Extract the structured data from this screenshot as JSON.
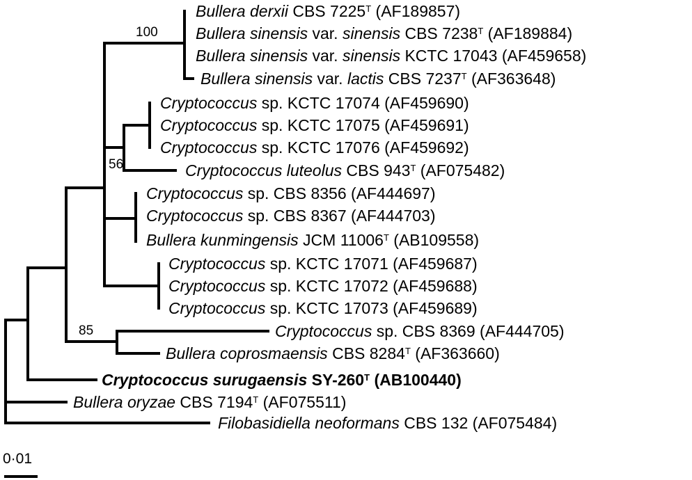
{
  "taxa": [
    {
      "id": "t1",
      "genus": "Bullera",
      "epithet": "derxii",
      "rest": " CBS 7225",
      "type_strain": true,
      "accession": " (AF189857)"
    },
    {
      "id": "t2",
      "genus": "Bullera",
      "epithet": "sinensis",
      "var": "sinensis",
      "rest": " CBS 7238",
      "type_strain": true,
      "accession": " (AF189884)"
    },
    {
      "id": "t3",
      "genus": "Bullera",
      "epithet": "sinensis",
      "var": "sinensis",
      "rest": " KCTC 17043",
      "type_strain": false,
      "accession": " (AF459658)"
    },
    {
      "id": "t4",
      "genus": "Bullera",
      "epithet": "sinensis",
      "var": "lactis",
      "rest": " CBS 7237",
      "type_strain": true,
      "accession": " (AF363648)"
    },
    {
      "id": "t5",
      "genus": "Cryptococcus",
      "epithet": "",
      "rest": " sp. KCTC 17074",
      "type_strain": false,
      "accession": " (AF459690)"
    },
    {
      "id": "t6",
      "genus": "Cryptococcus",
      "epithet": "",
      "rest": " sp. KCTC 17075",
      "type_strain": false,
      "accession": " (AF459691)"
    },
    {
      "id": "t7",
      "genus": "Cryptococcus",
      "epithet": "",
      "rest": " sp. KCTC 17076",
      "type_strain": false,
      "accession": " (AF459692)"
    },
    {
      "id": "t8",
      "genus": "Cryptococcus",
      "epithet": "luteolus",
      "rest": " CBS 943",
      "type_strain": true,
      "accession": " (AF075482)"
    },
    {
      "id": "t9",
      "genus": "Cryptococcus",
      "epithet": "",
      "rest": " sp. CBS 8356",
      "type_strain": false,
      "accession": " (AF444697)"
    },
    {
      "id": "t10",
      "genus": "Cryptococcus",
      "epithet": "",
      "rest": " sp. CBS 8367",
      "type_strain": false,
      "accession": " (AF444703)"
    },
    {
      "id": "t11",
      "genus": "Bullera",
      "epithet": "kunmingensis",
      "rest": " JCM 11006",
      "type_strain": true,
      "accession": " (AB109558)"
    },
    {
      "id": "t12",
      "genus": "Cryptococcus",
      "epithet": "",
      "rest": " sp. KCTC 17071",
      "type_strain": false,
      "accession": " (AF459687)"
    },
    {
      "id": "t13",
      "genus": "Cryptococcus",
      "epithet": "",
      "rest": " sp. KCTC 17072",
      "type_strain": false,
      "accession": " (AF459688)"
    },
    {
      "id": "t14",
      "genus": "Cryptococcus",
      "epithet": "",
      "rest": " sp. KCTC 17073",
      "type_strain": false,
      "accession": " (AF459689)"
    },
    {
      "id": "t15",
      "genus": "Cryptococcus",
      "epithet": "",
      "rest": " sp. CBS 8369",
      "type_strain": false,
      "accession": " (AF444705)"
    },
    {
      "id": "t16",
      "genus": "Bullera",
      "epithet": "coprosmaensis",
      "rest": " CBS 8284",
      "type_strain": true,
      "accession": " (AF363660)"
    },
    {
      "id": "t17",
      "genus": "Cryptococcus",
      "epithet": "surugaensis",
      "rest": " SY-260",
      "type_strain": true,
      "accession": " (AB100440)",
      "bold": true
    },
    {
      "id": "t18",
      "genus": "Bullera",
      "epithet": "oryzae",
      "rest": " CBS 7194",
      "type_strain": true,
      "accession": " (AF075511)"
    },
    {
      "id": "t19",
      "genus": "Filobasidiella",
      "epithet": "neoformans",
      "rest": " CBS 132",
      "type_strain": false,
      "accession": " (AF075484)"
    }
  ],
  "type_superscript": "T",
  "var_text": " var. ",
  "bootstrap": [
    "100",
    "56",
    "85"
  ],
  "scale_bar_label": "0·01",
  "colors": {
    "line": "#000000",
    "text": "#000000",
    "background": "#ffffff"
  }
}
